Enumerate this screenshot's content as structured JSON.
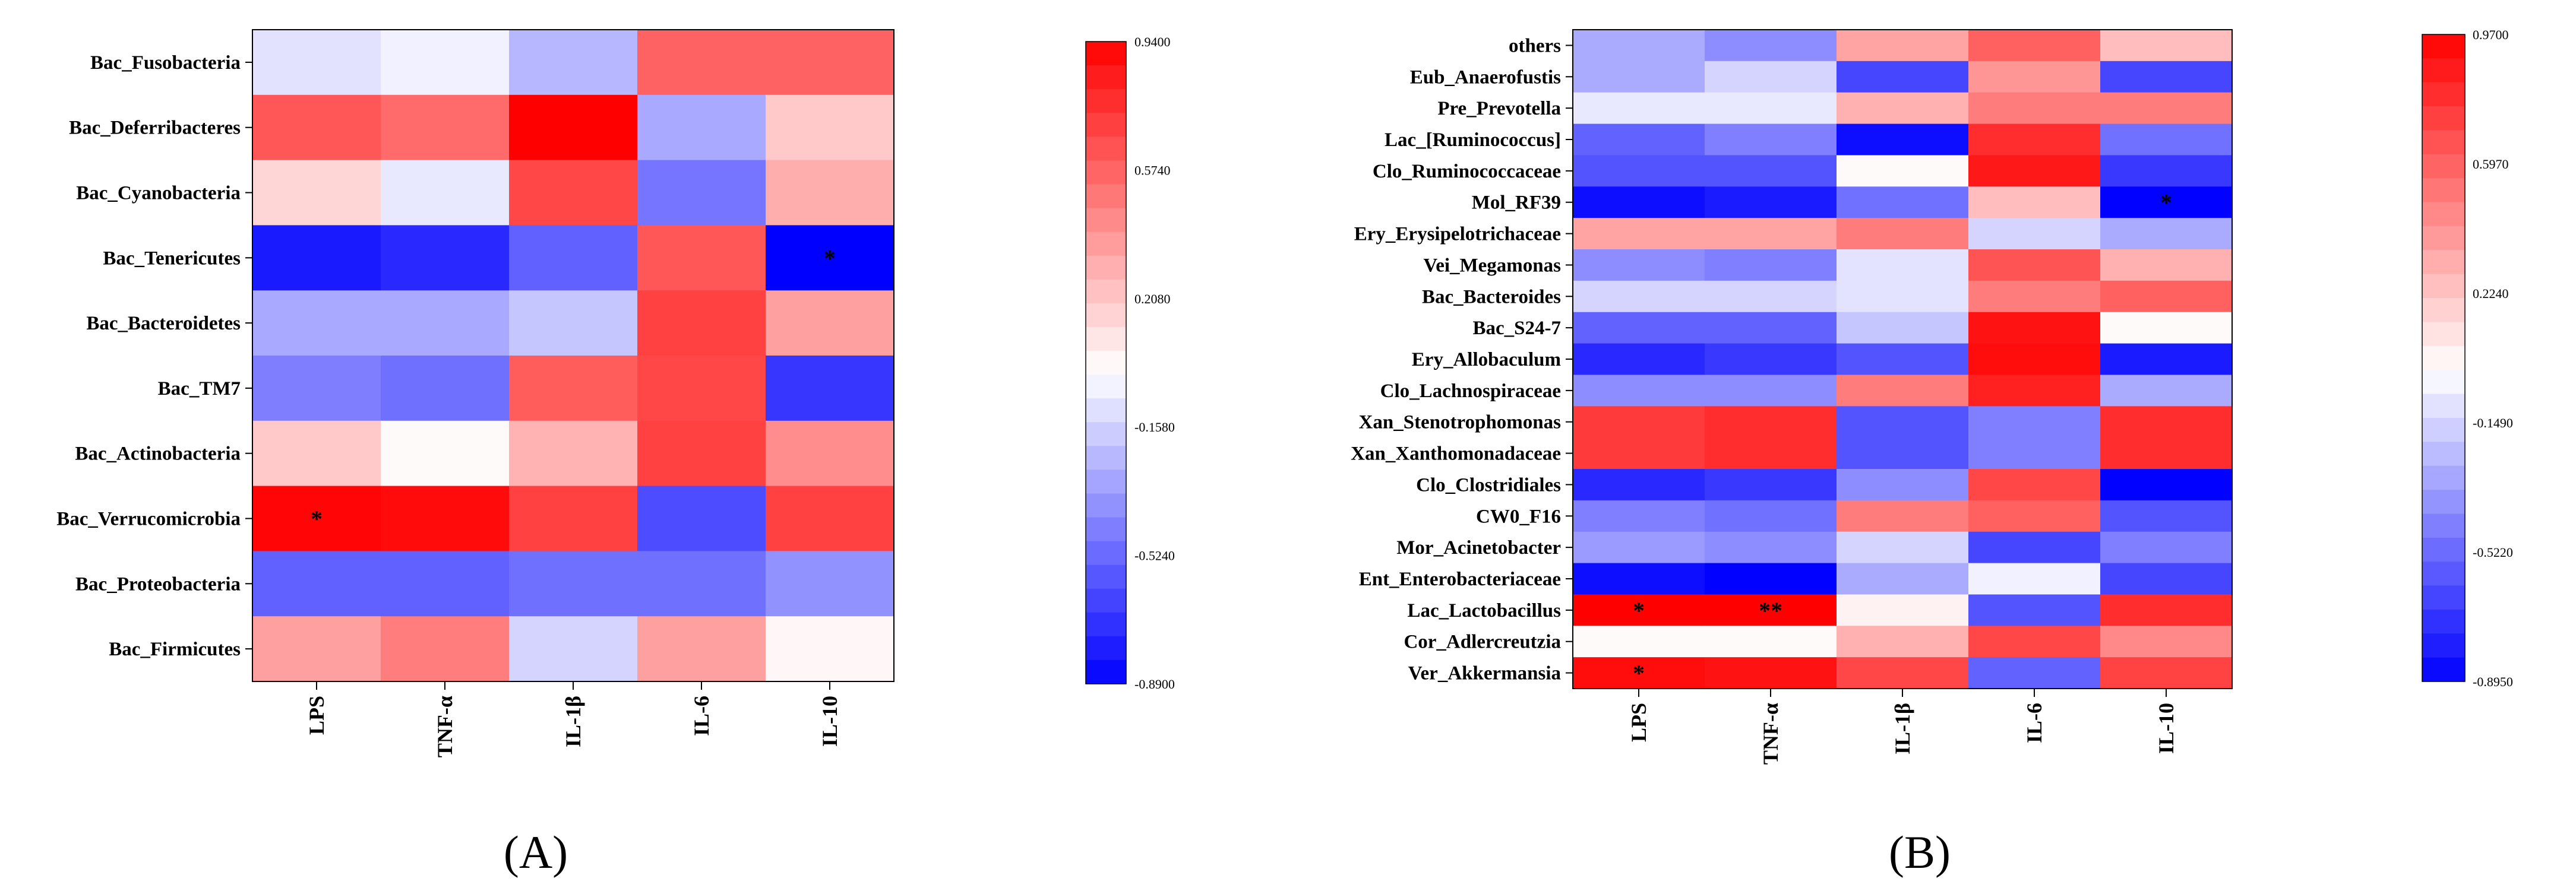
{
  "figure": {
    "panel_labels": [
      "(A)",
      "(B)"
    ]
  },
  "colors": {
    "low": "#0000ff",
    "mid": "#ffffff",
    "high": "#ff0000"
  },
  "chart_data": [
    {
      "type": "heatmap",
      "title": "",
      "panel": "(A)",
      "columns": [
        "LPS",
        "TNF-α",
        "IL-1β",
        "IL-6",
        "IL-10"
      ],
      "rows": [
        "Bac_Fusobacteria",
        "Bac_Deferribacteres",
        "Bac_Cyanobacteria",
        "Bac_Tenericutes",
        "Bac_Bacteroidetes",
        "Bac_TM7",
        "Bac_Actinobacteria",
        "Bac_Verrucomicrobia",
        "Bac_Proteobacteria",
        "Bac_Firmicutes"
      ],
      "values": [
        [
          -0.1,
          -0.05,
          -0.25,
          0.58,
          0.58
        ],
        [
          0.62,
          0.55,
          0.94,
          -0.3,
          0.2
        ],
        [
          0.15,
          -0.08,
          0.68,
          -0.48,
          0.3
        ],
        [
          -0.8,
          -0.75,
          -0.55,
          0.62,
          -0.89
        ],
        [
          -0.3,
          -0.3,
          -0.2,
          0.7,
          0.35
        ],
        [
          -0.45,
          -0.5,
          0.6,
          0.68,
          -0.7
        ],
        [
          0.2,
          0.02,
          0.28,
          0.7,
          0.42
        ],
        [
          0.92,
          0.9,
          0.7,
          -0.62,
          0.7
        ],
        [
          -0.55,
          -0.55,
          -0.5,
          -0.5,
          -0.38
        ],
        [
          0.35,
          0.48,
          -0.15,
          0.35,
          0.03
        ]
      ],
      "significance": [
        [
          "",
          "",
          "",
          "",
          ""
        ],
        [
          "",
          "",
          "",
          "",
          ""
        ],
        [
          "",
          "",
          "",
          "",
          ""
        ],
        [
          "",
          "",
          "",
          "",
          "*"
        ],
        [
          "",
          "",
          "",
          "",
          ""
        ],
        [
          "",
          "",
          "",
          "",
          ""
        ],
        [
          "",
          "",
          "",
          "",
          ""
        ],
        [
          "*",
          "",
          "",
          "",
          ""
        ],
        [
          "",
          "",
          "",
          "",
          ""
        ],
        [
          "",
          "",
          "",
          "",
          ""
        ]
      ],
      "colorbar": {
        "range": [
          -0.89,
          0.94
        ],
        "tick_labels": [
          "0.9400",
          "0.5740",
          "0.2080",
          "-0.1580",
          "-0.5240",
          "-0.8900"
        ]
      }
    },
    {
      "type": "heatmap",
      "title": "",
      "panel": "(B)",
      "columns": [
        "LPS",
        "TNF-α",
        "IL-1β",
        "IL-6",
        "IL-10"
      ],
      "rows": [
        "others",
        "Eub_Anaerofustis",
        "Pre_Prevotella",
        "Lac_[Ruminococcus]",
        "Clo_Ruminococcaceae",
        "Mol_RF39",
        "Ery_Erysipelotrichaceae",
        "Vei_Megamonas",
        "Bac_Bacteroides",
        "Bac_S24-7",
        "Ery_Allobaculum",
        "Clo_Lachnospiraceae",
        "Xan_Stenotrophomonas",
        "Xan_Xanthomonadaceae",
        "Clo_Clostridiales",
        "CW0_F16",
        "Mor_Acinetobacter",
        "Ent_Enterobacteriaceae",
        "Lac_Lactobacillus",
        "Cor_Adlercreutzia",
        "Ver_Akkermansia"
      ],
      "values": [
        [
          -0.3,
          -0.4,
          0.35,
          0.6,
          0.25
        ],
        [
          -0.3,
          -0.15,
          -0.65,
          0.4,
          -0.65
        ],
        [
          -0.08,
          -0.08,
          0.3,
          0.5,
          0.5
        ],
        [
          -0.55,
          -0.45,
          -0.85,
          0.8,
          -0.5
        ],
        [
          -0.6,
          -0.6,
          0.02,
          0.88,
          -0.7
        ],
        [
          -0.85,
          -0.8,
          -0.5,
          0.25,
          -0.89
        ],
        [
          0.35,
          0.35,
          0.5,
          -0.15,
          -0.3
        ],
        [
          -0.4,
          -0.45,
          -0.1,
          0.65,
          0.3
        ],
        [
          -0.15,
          -0.15,
          -0.1,
          0.5,
          0.6
        ],
        [
          -0.55,
          -0.55,
          -0.2,
          0.9,
          0.02
        ],
        [
          -0.75,
          -0.7,
          -0.6,
          0.92,
          -0.8
        ],
        [
          -0.4,
          -0.4,
          0.5,
          0.85,
          -0.3
        ],
        [
          0.75,
          0.8,
          -0.6,
          -0.45,
          0.8
        ],
        [
          0.75,
          0.8,
          -0.6,
          -0.45,
          0.8
        ],
        [
          -0.75,
          -0.7,
          -0.4,
          0.7,
          -0.89
        ],
        [
          -0.45,
          -0.5,
          0.5,
          0.6,
          -0.6
        ],
        [
          -0.35,
          -0.4,
          -0.15,
          -0.65,
          -0.45
        ],
        [
          -0.85,
          -0.89,
          -0.3,
          -0.05,
          -0.65
        ],
        [
          0.97,
          0.97,
          0.05,
          -0.6,
          0.8
        ],
        [
          0.02,
          0.02,
          0.3,
          0.7,
          0.45
        ],
        [
          0.92,
          0.9,
          0.7,
          -0.55,
          0.72
        ]
      ],
      "significance": [
        [
          "",
          "",
          "",
          "",
          ""
        ],
        [
          "",
          "",
          "",
          "",
          ""
        ],
        [
          "",
          "",
          "",
          "",
          ""
        ],
        [
          "",
          "",
          "",
          "",
          ""
        ],
        [
          "",
          "",
          "",
          "",
          ""
        ],
        [
          "",
          "",
          "",
          "",
          "*"
        ],
        [
          "",
          "",
          "",
          "",
          ""
        ],
        [
          "",
          "",
          "",
          "",
          ""
        ],
        [
          "",
          "",
          "",
          "",
          ""
        ],
        [
          "",
          "",
          "",
          "",
          ""
        ],
        [
          "",
          "",
          "",
          "",
          ""
        ],
        [
          "",
          "",
          "",
          "",
          ""
        ],
        [
          "",
          "",
          "",
          "",
          ""
        ],
        [
          "",
          "",
          "",
          "",
          ""
        ],
        [
          "",
          "",
          "",
          "",
          ""
        ],
        [
          "",
          "",
          "",
          "",
          ""
        ],
        [
          "",
          "",
          "",
          "",
          ""
        ],
        [
          "",
          "",
          "",
          "",
          ""
        ],
        [
          "*",
          "**",
          "",
          "",
          ""
        ],
        [
          "",
          "",
          "",
          "",
          ""
        ],
        [
          "*",
          "",
          "",
          "",
          ""
        ]
      ],
      "colorbar": {
        "range": [
          -0.895,
          0.97
        ],
        "tick_labels": [
          "0.9700",
          "0.5970",
          "0.2240",
          "-0.1490",
          "-0.5220",
          "-0.8950"
        ]
      }
    }
  ]
}
